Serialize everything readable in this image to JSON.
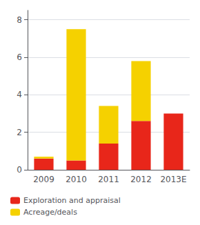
{
  "chart_data": {
    "type": "bar",
    "stacked": true,
    "categories": [
      "2009",
      "2010",
      "2011",
      "2012",
      "2013E"
    ],
    "series": [
      {
        "name": "Exploration and appraisal",
        "color": "#e8261a",
        "values": [
          0.6,
          0.5,
          1.4,
          2.6,
          3.0
        ]
      },
      {
        "name": "Acreage/deals",
        "color": "#f5d100",
        "values": [
          0.1,
          7.0,
          2.0,
          3.2,
          0.0
        ]
      }
    ],
    "ylim": [
      0,
      8.5
    ],
    "yticks": [
      0,
      2,
      4,
      6,
      8
    ],
    "grid": true,
    "legend": "bottom"
  }
}
